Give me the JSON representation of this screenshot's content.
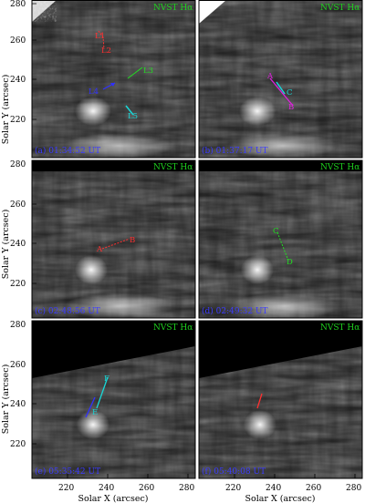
{
  "figure": {
    "ylabel": "Solar Y (arcsec)",
    "xlabel": "Solar X (arcsec)",
    "y_ticks": [
      "280",
      "260",
      "240",
      "220"
    ],
    "x_ticks": [
      "220",
      "240",
      "260",
      "280"
    ],
    "panel_title": "NVST Hα"
  },
  "panels": [
    {
      "id": "a",
      "timestamp": "(a) 01:34:52 UT",
      "features": [
        {
          "label": "L1",
          "color": "#ff3030"
        },
        {
          "label": "L2",
          "color": "#ff3030"
        },
        {
          "label": "L3",
          "color": "#22dd22"
        },
        {
          "label": "L4",
          "color": "#3030ff"
        },
        {
          "label": "L5",
          "color": "#18d8d8"
        }
      ]
    },
    {
      "id": "b",
      "timestamp": "(b) 01:37:17 UT",
      "features": [
        {
          "label": "A",
          "color": "#e020e0"
        },
        {
          "label": "B",
          "color": "#e020e0"
        },
        {
          "label": "C",
          "color": "#18d8d8"
        }
      ]
    },
    {
      "id": "c",
      "timestamp": "(c) 02:48:56 UT",
      "features": [
        {
          "label": "A",
          "color": "#ff3030"
        },
        {
          "label": "B",
          "color": "#ff3030"
        }
      ]
    },
    {
      "id": "d",
      "timestamp": "(d) 02:49:32 UT",
      "features": [
        {
          "label": "C",
          "color": "#22dd22"
        },
        {
          "label": "D",
          "color": "#22dd22"
        }
      ]
    },
    {
      "id": "e",
      "timestamp": "(e) 05:35:42 UT",
      "features": [
        {
          "label": "F",
          "color": "#18d8d8"
        },
        {
          "label": "E",
          "color": "#18d8d8"
        }
      ]
    },
    {
      "id": "f",
      "timestamp": "(f) 05:40:08 UT",
      "features": []
    }
  ],
  "colors": {
    "title_green": "#1fd11f",
    "timestamp_blue": "#3b3bff"
  }
}
